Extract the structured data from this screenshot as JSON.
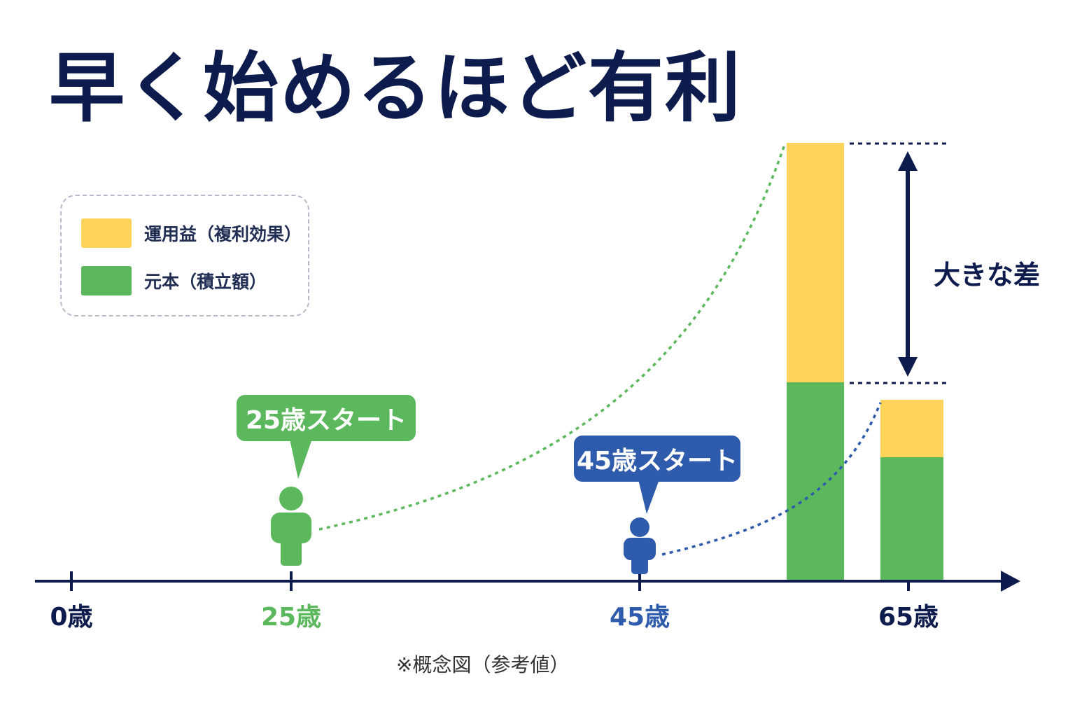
{
  "title": "早く始めるほど有利",
  "footnote": "※概念図（参考値）",
  "colors": {
    "title": "#0d1b4d",
    "axis": "#0d1b4d",
    "principal": "#5cb85c",
    "gain": "#fdd35a",
    "start_25": "#5cb85c",
    "start_45": "#2f5bac"
  },
  "legend": {
    "items": [
      {
        "label": "運用益（複利効果）",
        "color": "#fdd35a"
      },
      {
        "label": "元本（積立額）",
        "color": "#5cb85c"
      }
    ]
  },
  "chart_data": {
    "type": "bar",
    "title": "早く始めるほど有利",
    "xlabel": "",
    "ylabel": "",
    "x_ticks": [
      {
        "label": "0歳",
        "age": 0,
        "color": "#0d1b4d"
      },
      {
        "label": "25歳",
        "age": 25,
        "color": "#5cb85c"
      },
      {
        "label": "45歳",
        "age": 45,
        "color": "#2f5bac"
      },
      {
        "label": "65歳",
        "age": 65,
        "color": "#0d1b4d"
      }
    ],
    "bars": [
      {
        "start_age": 25,
        "principal": 282,
        "gain": 342
      },
      {
        "start_age": 45,
        "principal": 175,
        "gain": 82
      }
    ],
    "series": [
      {
        "name": "運用益（複利効果）",
        "values": [
          342,
          82
        ]
      },
      {
        "name": "元本（積立額）",
        "values": [
          282,
          175
        ]
      }
    ],
    "starts": [
      {
        "label": "25歳スタート",
        "age": 25,
        "color": "#5cb85c"
      },
      {
        "label": "45歳スタート",
        "age": 45,
        "color": "#2f5bac"
      }
    ],
    "annotation": {
      "label": "大きな差"
    },
    "x_range": [
      0,
      70
    ],
    "grid": false,
    "legend_position": "top-left"
  }
}
